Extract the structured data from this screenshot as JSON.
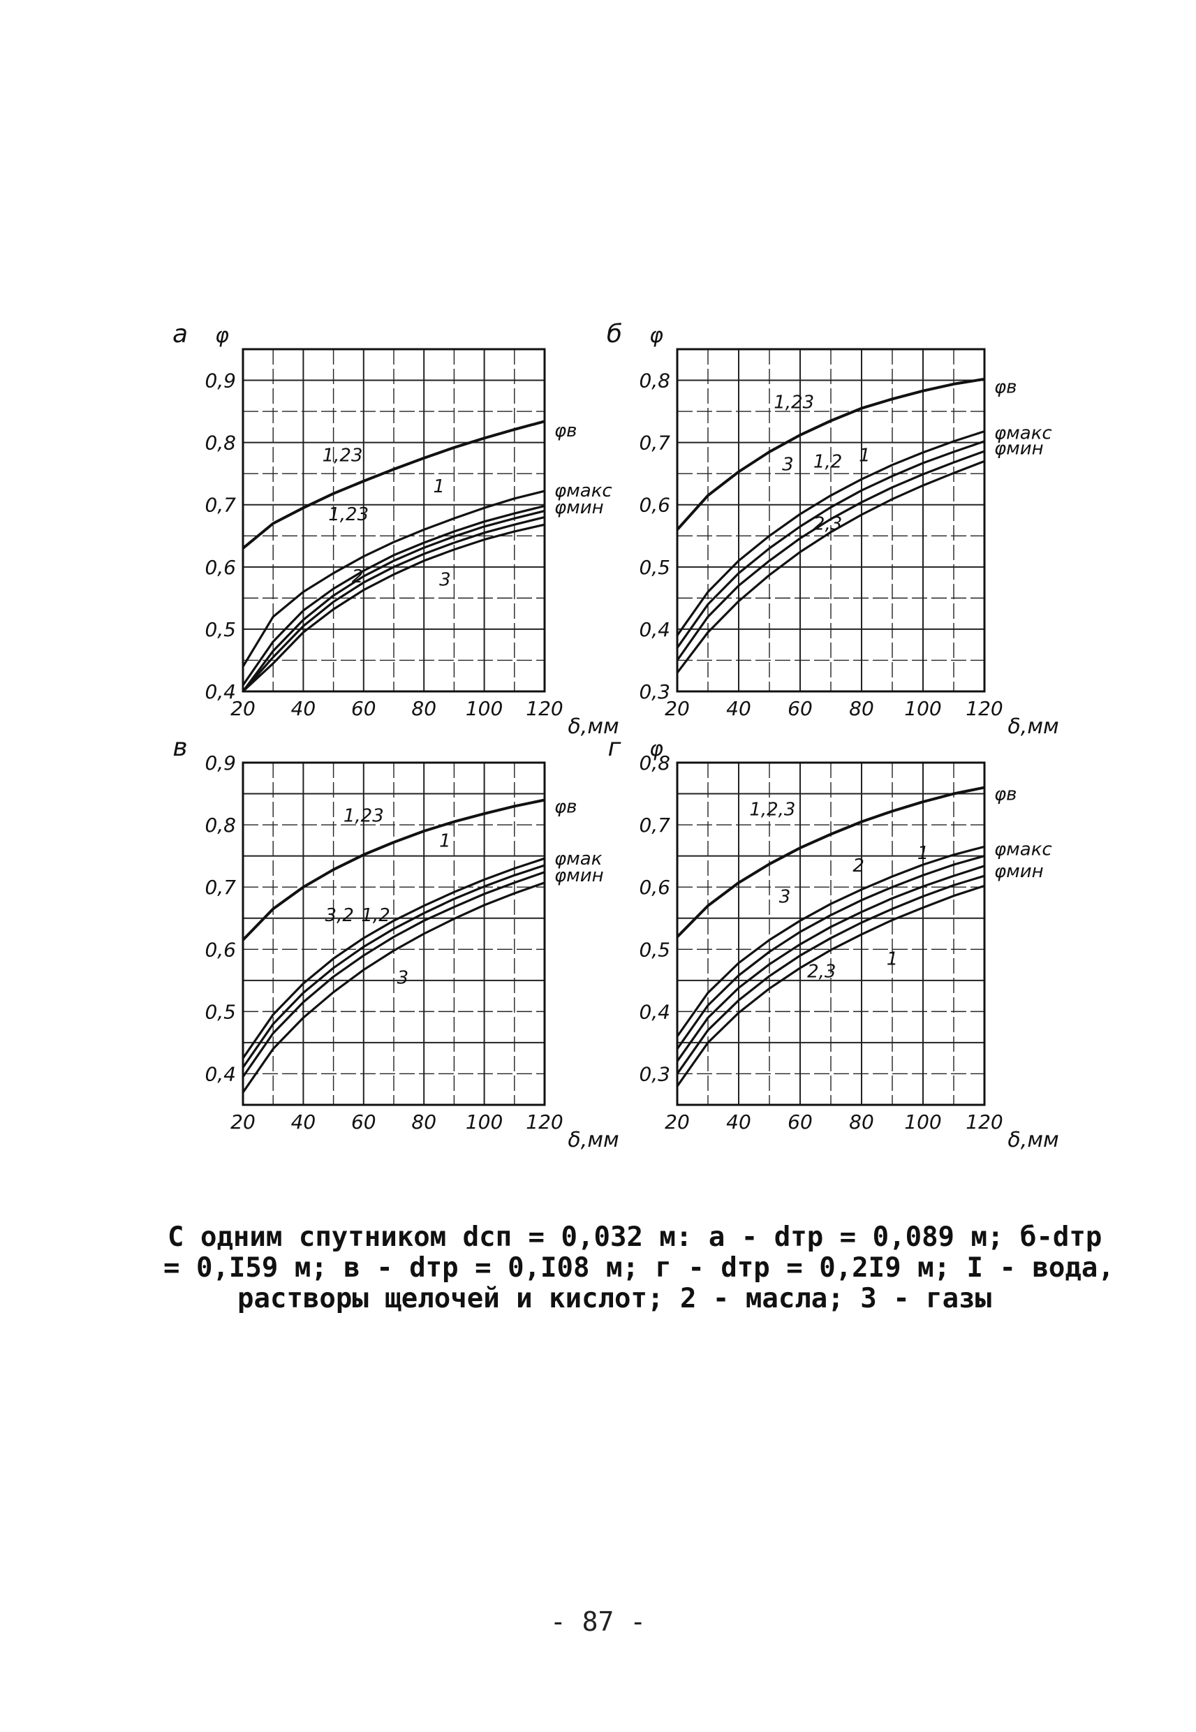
{
  "chart_data": [
    {
      "type": "line",
      "panel_label": "а",
      "y_axis_label": "φ",
      "x_axis_label": "δ,мм",
      "x_ticks": [
        "20",
        "40",
        "60",
        "80",
        "100",
        "120"
      ],
      "y_ticks": [
        "0,4",
        "0,5",
        "0,6",
        "0,7",
        "0,8",
        "0,9"
      ],
      "xlim": [
        20,
        120
      ],
      "ylim": [
        0.4,
        0.95
      ],
      "grid": true,
      "x": [
        20,
        30,
        40,
        50,
        60,
        70,
        80,
        90,
        100,
        110,
        120
      ],
      "series": [
        {
          "name": "1,23",
          "values": [
            0.63,
            0.67,
            0.695,
            0.718,
            0.738,
            0.757,
            0.775,
            0.792,
            0.807,
            0.821,
            0.834
          ]
        },
        {
          "name": "",
          "values": [
            0.44,
            0.52,
            0.56,
            0.59,
            0.617,
            0.64,
            0.66,
            0.678,
            0.695,
            0.71,
            0.722
          ]
        },
        {
          "name": "",
          "values": [
            0.41,
            0.48,
            0.53,
            0.565,
            0.594,
            0.619,
            0.639,
            0.657,
            0.673,
            0.686,
            0.698
          ]
        },
        {
          "name": "",
          "values": [
            0.4,
            0.465,
            0.515,
            0.554,
            0.585,
            0.61,
            0.631,
            0.649,
            0.665,
            0.678,
            0.69
          ]
        },
        {
          "name": "",
          "values": [
            0.4,
            0.455,
            0.505,
            0.544,
            0.575,
            0.6,
            0.621,
            0.639,
            0.655,
            0.668,
            0.68
          ]
        },
        {
          "name": "",
          "values": [
            0.4,
            0.445,
            0.495,
            0.532,
            0.563,
            0.588,
            0.61,
            0.628,
            0.644,
            0.657,
            0.668
          ]
        }
      ],
      "annotations": [
        "1,23",
        "1",
        "1,23",
        "2",
        "3"
      ],
      "right_labels": [
        "φв",
        "φмакс",
        "φмин"
      ]
    },
    {
      "type": "line",
      "panel_label": "б",
      "y_axis_label": "φ",
      "x_axis_label": "δ,мм",
      "x_ticks": [
        "20",
        "40",
        "60",
        "80",
        "100",
        "120"
      ],
      "y_ticks": [
        "0,3",
        "0,4",
        "0,5",
        "0,6",
        "0,7",
        "0,8"
      ],
      "xlim": [
        20,
        120
      ],
      "ylim": [
        0.3,
        0.85
      ],
      "grid": true,
      "x": [
        20,
        30,
        40,
        50,
        60,
        70,
        80,
        90,
        100,
        110,
        120
      ],
      "series": [
        {
          "name": "1,23",
          "values": [
            0.56,
            0.615,
            0.653,
            0.685,
            0.712,
            0.735,
            0.755,
            0.77,
            0.783,
            0.794,
            0.802
          ]
        },
        {
          "name": "",
          "values": [
            0.39,
            0.46,
            0.51,
            0.55,
            0.585,
            0.615,
            0.641,
            0.664,
            0.684,
            0.702,
            0.718
          ]
        },
        {
          "name": "",
          "values": [
            0.37,
            0.44,
            0.49,
            0.53,
            0.565,
            0.596,
            0.623,
            0.646,
            0.667,
            0.685,
            0.702
          ]
        },
        {
          "name": "",
          "values": [
            0.35,
            0.42,
            0.47,
            0.51,
            0.546,
            0.577,
            0.604,
            0.628,
            0.649,
            0.668,
            0.686
          ]
        },
        {
          "name": "",
          "values": [
            0.33,
            0.395,
            0.445,
            0.487,
            0.524,
            0.556,
            0.584,
            0.609,
            0.631,
            0.651,
            0.67
          ]
        }
      ],
      "annotations": [
        "1,23",
        "3",
        "1,2",
        "1",
        "2,3"
      ],
      "right_labels": [
        "φв",
        "φмакс",
        "φмин"
      ]
    },
    {
      "type": "line",
      "panel_label": "в",
      "y_axis_label": "",
      "x_axis_label": "δ,мм",
      "x_ticks": [
        "20",
        "40",
        "60",
        "80",
        "100",
        "120"
      ],
      "y_ticks": [
        "0,4",
        "0,5",
        "0,6",
        "0,7",
        "0,8",
        "0,9"
      ],
      "xlim": [
        20,
        120
      ],
      "ylim": [
        0.35,
        0.9
      ],
      "grid": true,
      "x": [
        20,
        30,
        40,
        50,
        60,
        70,
        80,
        90,
        100,
        110,
        120
      ],
      "series": [
        {
          "name": "1,23",
          "values": [
            0.615,
            0.665,
            0.7,
            0.728,
            0.752,
            0.772,
            0.79,
            0.805,
            0.818,
            0.83,
            0.84
          ]
        },
        {
          "name": "",
          "values": [
            0.425,
            0.495,
            0.545,
            0.585,
            0.618,
            0.646,
            0.67,
            0.692,
            0.712,
            0.73,
            0.746
          ]
        },
        {
          "name": "",
          "values": [
            0.41,
            0.48,
            0.53,
            0.57,
            0.604,
            0.633,
            0.658,
            0.681,
            0.701,
            0.719,
            0.735
          ]
        },
        {
          "name": "",
          "values": [
            0.395,
            0.465,
            0.515,
            0.556,
            0.59,
            0.62,
            0.646,
            0.668,
            0.689,
            0.707,
            0.724
          ]
        },
        {
          "name": "",
          "values": [
            0.37,
            0.44,
            0.49,
            0.531,
            0.567,
            0.598,
            0.625,
            0.649,
            0.671,
            0.69,
            0.707
          ]
        }
      ],
      "annotations": [
        "1,23",
        "1",
        "3,2",
        "1,2",
        "3"
      ],
      "right_labels": [
        "φв",
        "φмак",
        "φмин"
      ]
    },
    {
      "type": "line",
      "panel_label": "г",
      "y_axis_label": "φ",
      "x_axis_label": "δ,мм",
      "x_ticks": [
        "20",
        "40",
        "60",
        "80",
        "100",
        "120"
      ],
      "y_ticks": [
        "0,3",
        "0,4",
        "0,5",
        "0,6",
        "0,7",
        "0,8"
      ],
      "xlim": [
        20,
        120
      ],
      "ylim": [
        0.25,
        0.8
      ],
      "grid": true,
      "x": [
        20,
        30,
        40,
        50,
        60,
        70,
        80,
        90,
        100,
        110,
        120
      ],
      "series": [
        {
          "name": "1,2,3",
          "values": [
            0.52,
            0.57,
            0.607,
            0.637,
            0.663,
            0.685,
            0.705,
            0.722,
            0.737,
            0.75,
            0.76
          ]
        },
        {
          "name": "",
          "values": [
            0.36,
            0.43,
            0.478,
            0.515,
            0.546,
            0.573,
            0.596,
            0.617,
            0.636,
            0.652,
            0.665
          ]
        },
        {
          "name": "",
          "values": [
            0.34,
            0.41,
            0.458,
            0.496,
            0.528,
            0.555,
            0.579,
            0.6,
            0.619,
            0.636,
            0.65
          ]
        },
        {
          "name": "",
          "values": [
            0.32,
            0.39,
            0.438,
            0.476,
            0.508,
            0.536,
            0.56,
            0.582,
            0.601,
            0.618,
            0.634
          ]
        },
        {
          "name": "",
          "values": [
            0.3,
            0.37,
            0.418,
            0.457,
            0.49,
            0.518,
            0.543,
            0.565,
            0.585,
            0.603,
            0.618
          ]
        },
        {
          "name": "",
          "values": [
            0.28,
            0.35,
            0.398,
            0.437,
            0.47,
            0.499,
            0.524,
            0.547,
            0.567,
            0.586,
            0.602
          ]
        }
      ],
      "annotations": [
        "1,2,3",
        "3",
        "2",
        "1",
        "2,3",
        "1"
      ],
      "right_labels": [
        "φв",
        "φмакс",
        "φмин"
      ]
    }
  ],
  "caption": {
    "line1": "С одним спутником dсп = 0,032 м: а - dтр = 0,089 м;  б-dтр",
    "line2": "= 0,I59 м; в - dтр = 0,I08 м; г - dтр = 0,2I9 м; I - вода,",
    "line3": "растворы щелочей и кислот; 2 - масла; 3 - газы"
  },
  "page_number": "- 87 -"
}
